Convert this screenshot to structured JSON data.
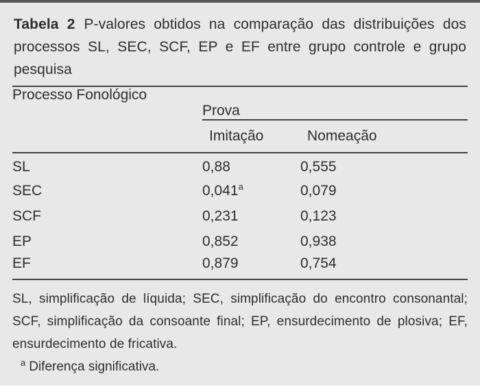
{
  "title": {
    "label": "Tabela 2",
    "text": "P-valores obtidos na comparação das distribuições dos processos SL, SEC, SCF, EP e EF entre grupo controle e grupo pesquisa"
  },
  "table": {
    "col1_header": "Processo Fonológico",
    "group_header": "Prova",
    "sub_headers": [
      "Imitação",
      "Nomeação"
    ],
    "rows": [
      {
        "process": "SL",
        "imitacao": "0,88",
        "imitacao_sup": "",
        "nomeacao": "0,555"
      },
      {
        "process": "SEC",
        "imitacao": "0,041",
        "imitacao_sup": "a",
        "nomeacao": "0,079"
      },
      {
        "process": "SCF",
        "imitacao": "0,231",
        "imitacao_sup": "",
        "nomeacao": "0,123"
      },
      {
        "process": "EP",
        "imitacao": "0,852",
        "imitacao_sup": "",
        "nomeacao": "0,938"
      },
      {
        "process": "EF",
        "imitacao": "0,879",
        "imitacao_sup": "",
        "nomeacao": "0,754"
      }
    ]
  },
  "footnotes": {
    "abbreviations": "SL, simplificação de líquida; SEC, simplificação do encontro consonantal; SCF, simplificação da consoante final; EP, ensurdecimento de plosiva; EF, ensurdecimento de fricativa.",
    "significance_marker": "a",
    "significance_text": "Diferença significativa."
  },
  "colors": {
    "panel_background": "#e8e8e8",
    "top_bar": "#58595b",
    "rule": "#414143",
    "text": "#2e2e30"
  }
}
